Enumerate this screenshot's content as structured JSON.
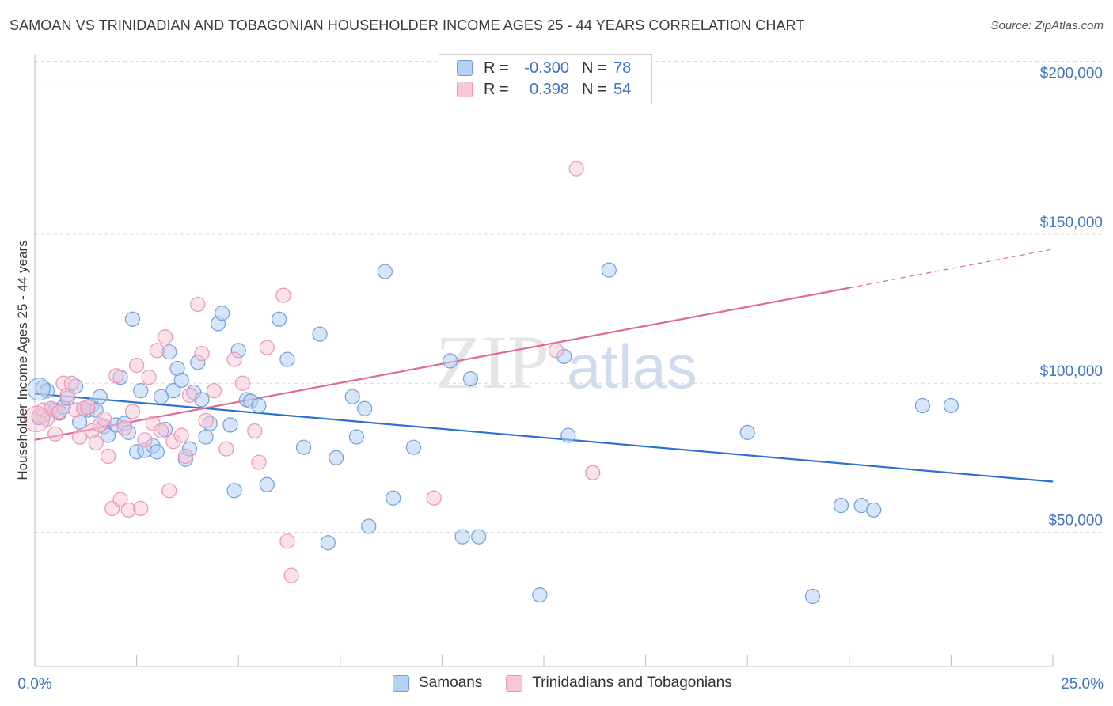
{
  "header": {
    "title": "SAMOAN VS TRINIDADIAN AND TOBAGONIAN HOUSEHOLDER INCOME AGES 25 - 44 YEARS CORRELATION CHART",
    "source": "Source: ZipAtlas.com"
  },
  "watermark": {
    "zip": "ZIP",
    "atlas": "atlas"
  },
  "legend": {
    "rows": [
      {
        "r_label": "R =",
        "r_value": "-0.300",
        "n_label": "N =",
        "n_value": "78"
      },
      {
        "r_label": "R =",
        "r_value": "0.398",
        "n_label": "N =",
        "n_value": "54"
      }
    ]
  },
  "bottom_legend": {
    "series_a": "Samoans",
    "series_b": "Trinidadians and Tobagonians"
  },
  "colors": {
    "samoan_fill": "#b7d0f2",
    "samoan_stroke": "#6f9fe0",
    "samoan_line": "#2f6fcf",
    "trini_fill": "#f8c6d6",
    "trini_stroke": "#ef93b0",
    "trini_line": "#e06b92",
    "tick_text": "#3d74c4",
    "grid": "#d8d8d8"
  },
  "chart_data": {
    "type": "scatter",
    "title": "SAMOAN VS TRINIDADIAN AND TOBAGONIAN HOUSEHOLDER INCOME AGES 25 - 44 YEARS CORRELATION CHART",
    "ylabel": "Householder Income Ages 25 - 44 years",
    "xlabel": "",
    "xlim": [
      0,
      25
    ],
    "ylim": [
      5000,
      210000
    ],
    "x_tick_labels": [
      "0.0%",
      "25.0%"
    ],
    "y_ticks": [
      50000,
      100000,
      150000,
      200000
    ],
    "y_tick_labels": [
      "$50,000",
      "$100,000",
      "$150,000",
      "$200,000"
    ],
    "grid": true,
    "legend_position": "top-center",
    "series": [
      {
        "name": "Samoans",
        "r": -0.3,
        "n": 78,
        "trend": {
          "x": [
            0,
            25
          ],
          "y": [
            96500,
            67000
          ]
        },
        "points": [
          [
            0.2,
            98500
          ],
          [
            0.3,
            97500
          ],
          [
            0.4,
            91500
          ],
          [
            0.5,
            91000
          ],
          [
            0.6,
            90000
          ],
          [
            0.7,
            92000
          ],
          [
            0.8,
            95000
          ],
          [
            1.0,
            99000
          ],
          [
            1.1,
            87000
          ],
          [
            1.2,
            91500
          ],
          [
            1.3,
            91000
          ],
          [
            1.4,
            92500
          ],
          [
            1.5,
            91000
          ],
          [
            1.6,
            95500
          ],
          [
            1.7,
            85500
          ],
          [
            1.8,
            82500
          ],
          [
            2.0,
            86000
          ],
          [
            2.1,
            102000
          ],
          [
            2.2,
            86500
          ],
          [
            2.3,
            83500
          ],
          [
            2.4,
            121500
          ],
          [
            2.5,
            77000
          ],
          [
            2.6,
            97500
          ],
          [
            2.7,
            77500
          ],
          [
            2.9,
            79000
          ],
          [
            3.0,
            77000
          ],
          [
            3.1,
            95500
          ],
          [
            3.2,
            84500
          ],
          [
            3.3,
            110500
          ],
          [
            3.4,
            97500
          ],
          [
            3.5,
            105000
          ],
          [
            3.6,
            101000
          ],
          [
            3.7,
            74500
          ],
          [
            3.8,
            78000
          ],
          [
            3.9,
            97000
          ],
          [
            4.0,
            107000
          ],
          [
            4.1,
            94500
          ],
          [
            4.2,
            82000
          ],
          [
            4.3,
            86500
          ],
          [
            4.5,
            120000
          ],
          [
            4.6,
            123500
          ],
          [
            4.8,
            86000
          ],
          [
            4.9,
            64000
          ],
          [
            5.0,
            111000
          ],
          [
            5.2,
            94500
          ],
          [
            5.3,
            94000
          ],
          [
            5.5,
            92500
          ],
          [
            5.7,
            66000
          ],
          [
            6.0,
            121500
          ],
          [
            6.2,
            108000
          ],
          [
            6.6,
            78500
          ],
          [
            7.0,
            116500
          ],
          [
            7.2,
            46500
          ],
          [
            7.4,
            75000
          ],
          [
            7.8,
            95500
          ],
          [
            7.9,
            82000
          ],
          [
            8.1,
            91500
          ],
          [
            8.2,
            52000
          ],
          [
            8.6,
            137500
          ],
          [
            8.8,
            61500
          ],
          [
            9.3,
            78500
          ],
          [
            10.2,
            107500
          ],
          [
            10.5,
            48500
          ],
          [
            10.7,
            101500
          ],
          [
            10.9,
            48500
          ],
          [
            12.4,
            29000
          ],
          [
            13.0,
            109000
          ],
          [
            13.1,
            82500
          ],
          [
            14.1,
            138000
          ],
          [
            17.5,
            83500
          ],
          [
            19.1,
            28500
          ],
          [
            19.8,
            59000
          ],
          [
            20.3,
            59000
          ],
          [
            20.6,
            57500
          ],
          [
            21.8,
            92500
          ],
          [
            22.5,
            92500
          ],
          [
            0.1,
            88500
          ],
          [
            0.2,
            89000
          ]
        ]
      },
      {
        "name": "Trinidadians and Tobagonians",
        "r": 0.398,
        "n": 54,
        "trend": {
          "x": [
            0,
            20
          ],
          "y": [
            81000,
            132000
          ],
          "x_dashed_end": 25,
          "y_dashed_end": 145000
        },
        "points": [
          [
            0.1,
            89000
          ],
          [
            0.2,
            91000
          ],
          [
            0.3,
            88000
          ],
          [
            0.4,
            91500
          ],
          [
            0.5,
            83000
          ],
          [
            0.6,
            90500
          ],
          [
            0.7,
            100000
          ],
          [
            0.8,
            96000
          ],
          [
            0.9,
            100000
          ],
          [
            1.0,
            91000
          ],
          [
            1.1,
            82000
          ],
          [
            1.2,
            91500
          ],
          [
            1.3,
            92000
          ],
          [
            1.4,
            84000
          ],
          [
            1.5,
            80000
          ],
          [
            1.6,
            86000
          ],
          [
            1.7,
            88000
          ],
          [
            1.8,
            75500
          ],
          [
            1.9,
            58000
          ],
          [
            2.0,
            102500
          ],
          [
            2.1,
            61000
          ],
          [
            2.2,
            85000
          ],
          [
            2.3,
            57500
          ],
          [
            2.4,
            90500
          ],
          [
            2.5,
            106000
          ],
          [
            2.6,
            58000
          ],
          [
            2.7,
            81000
          ],
          [
            2.8,
            102000
          ],
          [
            2.9,
            86500
          ],
          [
            3.0,
            111000
          ],
          [
            3.1,
            84000
          ],
          [
            3.2,
            115500
          ],
          [
            3.3,
            64000
          ],
          [
            3.4,
            80500
          ],
          [
            3.6,
            82500
          ],
          [
            3.7,
            75500
          ],
          [
            3.8,
            96000
          ],
          [
            4.0,
            126500
          ],
          [
            4.1,
            110000
          ],
          [
            4.2,
            87500
          ],
          [
            4.4,
            97500
          ],
          [
            4.7,
            78000
          ],
          [
            4.9,
            108000
          ],
          [
            5.1,
            100000
          ],
          [
            5.4,
            84000
          ],
          [
            5.5,
            73500
          ],
          [
            5.7,
            112000
          ],
          [
            6.1,
            129500
          ],
          [
            6.2,
            47000
          ],
          [
            6.3,
            35500
          ],
          [
            9.8,
            61500
          ],
          [
            12.8,
            111000
          ],
          [
            13.3,
            172000
          ],
          [
            13.7,
            70000
          ]
        ]
      }
    ]
  }
}
